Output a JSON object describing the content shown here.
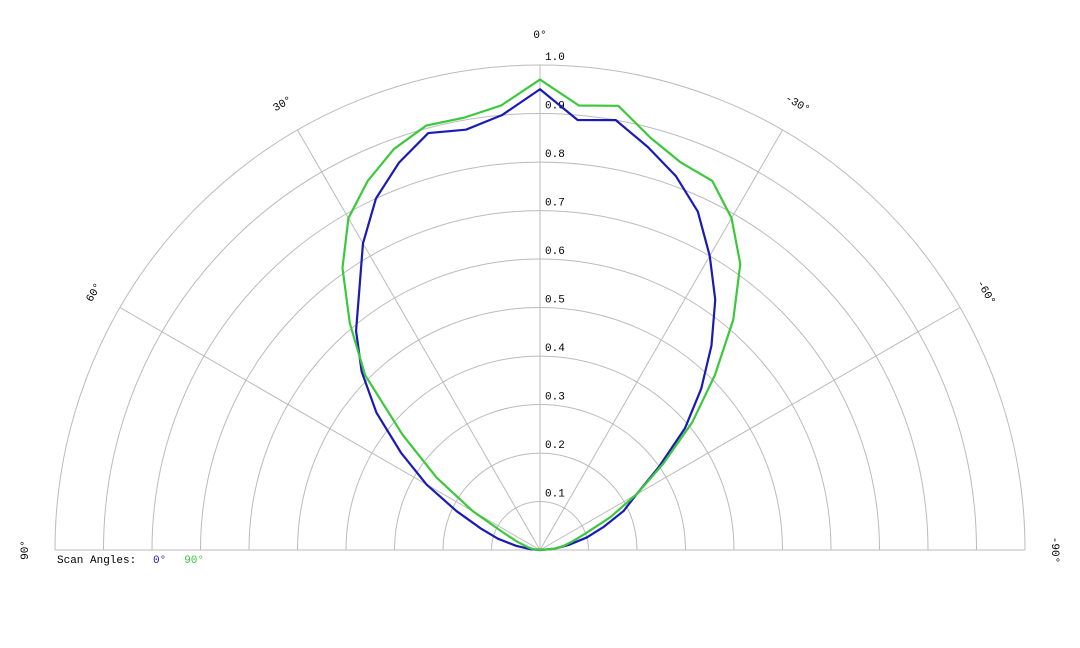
{
  "chart_data": {
    "type": "polar",
    "x": [
      -90,
      -85,
      -80,
      -75,
      -70,
      -65,
      -60,
      -55,
      -50,
      -45,
      -40,
      -35,
      -30,
      -25,
      -20,
      -15,
      -10,
      -5,
      0,
      5,
      10,
      15,
      20,
      25,
      30,
      35,
      40,
      45,
      50,
      55,
      60,
      65,
      70,
      75,
      80,
      85,
      90
    ],
    "series": [
      {
        "name": "0°",
        "color": "#1a1ab4",
        "values": [
          0,
          0.03,
          0.06,
          0.1,
          0.14,
          0.19,
          0.23,
          0.3,
          0.39,
          0.47,
          0.55,
          0.63,
          0.7,
          0.77,
          0.82,
          0.86,
          0.9,
          0.89,
          0.95,
          0.9,
          0.88,
          0.89,
          0.85,
          0.8,
          0.73,
          0.65,
          0.59,
          0.52,
          0.44,
          0.35,
          0.27,
          0.19,
          0.13,
          0.09,
          0.05,
          0.02,
          0
        ]
      },
      {
        "name": "90°",
        "color": "#3cc83c",
        "values": [
          0,
          0.03,
          0.05,
          0.07,
          0.1,
          0.16,
          0.23,
          0.31,
          0.41,
          0.51,
          0.62,
          0.72,
          0.79,
          0.84,
          0.85,
          0.88,
          0.93,
          0.92,
          0.97,
          0.92,
          0.905,
          0.906,
          0.88,
          0.84,
          0.79,
          0.71,
          0.61,
          0.51,
          0.37,
          0.26,
          0.16,
          0.08,
          0.05,
          0.03,
          0.02,
          0.01,
          0
        ]
      }
    ],
    "legend_title": "Scan Angles:",
    "xlim": [
      -90,
      90
    ],
    "xticks": [
      {
        "value": 90,
        "label": "90°"
      },
      {
        "value": 60,
        "label": "60°"
      },
      {
        "value": 30,
        "label": "30°"
      },
      {
        "value": 0,
        "label": "0°"
      },
      {
        "value": -30,
        "label": "-30°"
      },
      {
        "value": -60,
        "label": "-60°"
      },
      {
        "value": -90,
        "label": "-90°"
      }
    ],
    "ylim": [
      0,
      1
    ],
    "yticks": [
      0.1,
      0.2,
      0.3,
      0.4,
      0.5,
      0.6,
      0.7,
      0.8,
      0.9,
      {
        "value": 1,
        "label": "1.0"
      }
    ],
    "grid": true
  }
}
